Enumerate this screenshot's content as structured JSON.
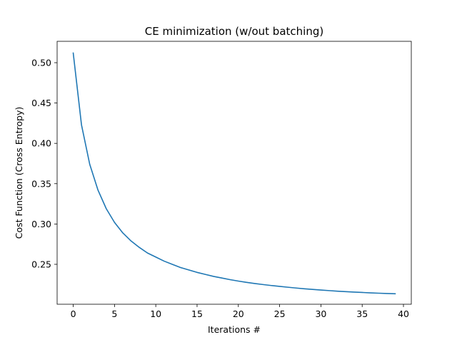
{
  "chart_data": {
    "type": "line",
    "title": "CE minimization (w/out batching)",
    "xlabel": "Iterations #",
    "ylabel": "Cost Function (Cross Entropy)",
    "xlim": [
      -1.95,
      40.95
    ],
    "ylim": [
      0.2005,
      0.5265
    ],
    "xticks": [
      0,
      5,
      10,
      15,
      20,
      25,
      30,
      35,
      40
    ],
    "yticks": [
      0.25,
      0.3,
      0.35,
      0.4,
      0.45,
      0.5
    ],
    "ytick_labels": [
      "0.25",
      "0.30",
      "0.35",
      "0.40",
      "0.45",
      "0.50"
    ],
    "grid": false,
    "series": [
      {
        "color": "#1f77b4",
        "x": [
          0,
          1,
          2,
          3,
          4,
          5,
          6,
          7,
          8,
          9,
          10,
          11,
          12,
          13,
          14,
          15,
          16,
          17,
          18,
          19,
          20,
          21,
          22,
          23,
          24,
          25,
          26,
          27,
          28,
          29,
          30,
          31,
          32,
          33,
          34,
          35,
          36,
          37,
          38,
          39
        ],
        "values": [
          0.512,
          0.423,
          0.374,
          0.342,
          0.319,
          0.302,
          0.289,
          0.279,
          0.271,
          0.264,
          0.259,
          0.254,
          0.25,
          0.246,
          0.243,
          0.24,
          0.2375,
          0.235,
          0.233,
          0.231,
          0.2292,
          0.2276,
          0.2262,
          0.2249,
          0.2237,
          0.2226,
          0.2216,
          0.2206,
          0.2197,
          0.2189,
          0.2181,
          0.2174,
          0.2167,
          0.2161,
          0.2156,
          0.2151,
          0.2146,
          0.2142,
          0.2138,
          0.2135
        ]
      }
    ]
  }
}
